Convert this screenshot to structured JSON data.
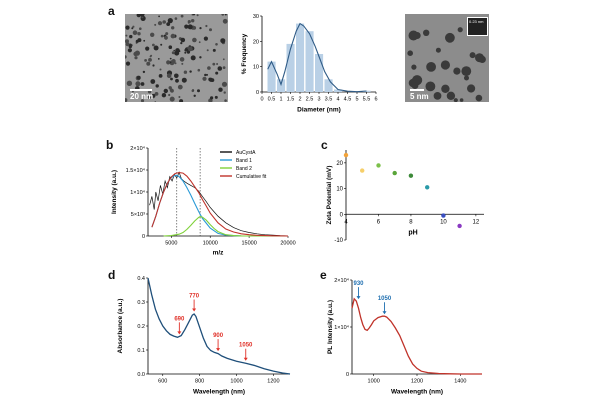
{
  "panels": {
    "a": "a",
    "b": "b",
    "c": "c",
    "d": "d",
    "e": "e"
  },
  "tem_left": {
    "scalebar_label": "20 nm"
  },
  "tem_right": {
    "scalebar_label": "5 nm",
    "inset_label": "0.23 nm"
  },
  "colors": {
    "hist_bar": "#b9d0e6",
    "hist_line": "#2f5b86",
    "aucysta": "#111111",
    "band1": "#2a9ad6",
    "band2": "#7fd13a",
    "cumulative": "#c0332a",
    "abs_line": "#1f4f7a",
    "abs_arrow": "#e0322a",
    "pl_line": "#c0332a",
    "pl_arrow": "#1f6fb0"
  },
  "chart_data": [
    {
      "id": "a-hist",
      "type": "bar",
      "xlabel": "Diameter (nm)",
      "ylabel": "% Frequency",
      "xlim": [
        0,
        6
      ],
      "ylim": [
        0,
        30
      ],
      "xticks": [
        "0",
        "0.5",
        "1",
        "1.5",
        "2",
        "2.5",
        "3",
        "3.5",
        "4",
        "4.5",
        "5",
        "5.5",
        "6"
      ],
      "yticks": [
        "0",
        "10",
        "20",
        "30"
      ],
      "x": [
        0.5,
        1.0,
        1.5,
        2.0,
        2.5,
        3.0,
        3.5,
        4.0,
        5.5
      ],
      "values": [
        12,
        5,
        19,
        27,
        24,
        15,
        5,
        1,
        0.5
      ],
      "fit_x": [
        0.3,
        0.5,
        0.8,
        1.0,
        1.2,
        1.5,
        1.8,
        2.0,
        2.2,
        2.5,
        2.8,
        3.0,
        3.3,
        3.6,
        4.0,
        4.5,
        5.0,
        5.5
      ],
      "fit_y": [
        9,
        12,
        7,
        3,
        8,
        17,
        24,
        27,
        26,
        23,
        18,
        14,
        8,
        4,
        1,
        0.3,
        0.1,
        0.4
      ]
    },
    {
      "id": "b-ms",
      "type": "line",
      "xlabel": "m/z",
      "ylabel": "Intensity (a.u.)",
      "xlim": [
        2000,
        20000
      ],
      "ylim": [
        0,
        20000
      ],
      "xticks": [
        "5000",
        "10000",
        "15000",
        "20000"
      ],
      "yticks": [
        "0",
        "5×10³",
        "1×10⁴",
        "1.5×10⁴",
        "2×10⁴"
      ],
      "vlines": [
        5700,
        8700
      ],
      "series": [
        {
          "name": "AuCystA",
          "x": [
            2200,
            2500,
            2800,
            3000,
            3300,
            3600,
            3900,
            4200,
            4500,
            4800,
            5100,
            5400,
            5700,
            6000,
            6300,
            6600,
            7000,
            7500,
            8000,
            8500,
            9000,
            9500,
            10000,
            11000,
            12000,
            13000,
            14000,
            15000,
            16000,
            17000,
            18000,
            19000,
            20000
          ],
          "values": [
            7000,
            9000,
            6000,
            10000,
            8000,
            11500,
            9500,
            12500,
            11000,
            13500,
            12500,
            14000,
            13200,
            14500,
            13000,
            12500,
            12000,
            11500,
            11000,
            10200,
            9000,
            7800,
            6500,
            4500,
            3000,
            1900,
            1200,
            800,
            500,
            300,
            200,
            100,
            50
          ]
        },
        {
          "name": "Band 1",
          "x": [
            2500,
            3000,
            3500,
            4000,
            4500,
            5000,
            5500,
            5700,
            6000,
            6500,
            7000,
            7500,
            8000,
            8500,
            9000,
            10000,
            11000,
            12000,
            13000,
            14000,
            16000,
            20000
          ],
          "values": [
            2000,
            4500,
            7500,
            10000,
            12000,
            13300,
            13800,
            13800,
            13500,
            12500,
            11000,
            9300,
            7400,
            5600,
            4000,
            1800,
            600,
            200,
            80,
            30,
            0,
            0
          ]
        },
        {
          "name": "Band 2",
          "x": [
            4000,
            5000,
            6000,
            6500,
            7000,
            7500,
            8000,
            8500,
            8700,
            9000,
            9500,
            10000,
            10500,
            11000,
            12000,
            13000,
            14000,
            16000,
            20000
          ],
          "values": [
            0,
            100,
            400,
            800,
            1500,
            2400,
            3400,
            4200,
            4400,
            4300,
            3600,
            2600,
            1700,
            1000,
            300,
            80,
            20,
            0,
            0
          ]
        },
        {
          "name": "Cumulative fit",
          "x": [
            2500,
            3000,
            3500,
            4000,
            4500,
            5000,
            5500,
            5700,
            6000,
            6500,
            7000,
            7500,
            8000,
            8500,
            9000,
            9500,
            10000,
            11000,
            12000,
            13000,
            14000,
            15000,
            16000,
            18000,
            20000
          ],
          "values": [
            2000,
            4500,
            7500,
            10000,
            12000,
            13400,
            14200,
            14300,
            14400,
            14300,
            13600,
            12500,
            11200,
            9900,
            8300,
            6800,
            5200,
            3000,
            1600,
            900,
            500,
            300,
            150,
            40,
            10
          ]
        }
      ]
    },
    {
      "id": "c-zeta",
      "type": "scatter",
      "xlabel": "pH",
      "ylabel": "Zeta Potential (mV)",
      "xlim": [
        4,
        12.5
      ],
      "ylim": [
        -10,
        25
      ],
      "xticks": [
        "4",
        "6",
        "8",
        "10",
        "12"
      ],
      "yticks": [
        "-10",
        "0",
        "10",
        "20"
      ],
      "x": [
        4.0,
        5.0,
        6.0,
        7.0,
        8.0,
        9.0,
        10.0,
        11.0
      ],
      "values": [
        23,
        17,
        19,
        16,
        15,
        10.5,
        -0.5,
        -4.5
      ],
      "point_colors": [
        "#f2a33a",
        "#f6cf6a",
        "#7cc04a",
        "#5aa53a",
        "#3d8a3a",
        "#2a9aa8",
        "#3a4fc2",
        "#8a3ac2"
      ]
    },
    {
      "id": "d-abs",
      "type": "line",
      "xlabel": "Wavelength (nm)",
      "ylabel": "Absorbance (a.u.)",
      "xlim": [
        520,
        1290
      ],
      "ylim": [
        0,
        0.4
      ],
      "xticks": [
        "600",
        "800",
        "1000",
        "1200"
      ],
      "yticks": [
        "0.0",
        "0.1",
        "0.2",
        "0.3",
        "0.4"
      ],
      "x": [
        520,
        540,
        560,
        580,
        600,
        620,
        640,
        660,
        680,
        700,
        720,
        740,
        760,
        770,
        780,
        800,
        820,
        840,
        860,
        880,
        900,
        920,
        950,
        1000,
        1050,
        1100,
        1150,
        1200,
        1250,
        1290
      ],
      "values": [
        0.4,
        0.33,
        0.27,
        0.23,
        0.2,
        0.18,
        0.165,
        0.158,
        0.153,
        0.16,
        0.185,
        0.215,
        0.245,
        0.25,
        0.24,
        0.195,
        0.15,
        0.115,
        0.098,
        0.09,
        0.085,
        0.075,
        0.065,
        0.053,
        0.045,
        0.035,
        0.022,
        0.012,
        0.004,
        0.0
      ],
      "annotations": [
        {
          "label": "690",
          "x": 690,
          "y": 0.157
        },
        {
          "label": "770",
          "x": 770,
          "y": 0.252
        },
        {
          "label": "900",
          "x": 900,
          "y": 0.087
        },
        {
          "label": "1050",
          "x": 1050,
          "y": 0.047
        }
      ]
    },
    {
      "id": "e-pl",
      "type": "line",
      "xlabel": "Wavelength (nm)",
      "ylabel": "PL Intensity (a.u.)",
      "xlim": [
        900,
        1500
      ],
      "ylim": [
        0,
        20000
      ],
      "xticks": [
        "1000",
        "1200",
        "1400"
      ],
      "yticks": [
        "0",
        "1×10⁴",
        "2×10⁴"
      ],
      "x": [
        900,
        910,
        920,
        930,
        940,
        950,
        960,
        970,
        980,
        990,
        1000,
        1020,
        1040,
        1050,
        1060,
        1080,
        1100,
        1120,
        1140,
        1160,
        1180,
        1200,
        1220,
        1250,
        1300,
        1350,
        1400,
        1450,
        1500
      ],
      "values": [
        14000,
        16000,
        15500,
        14000,
        12000,
        10500,
        9500,
        9300,
        9800,
        10500,
        11300,
        12000,
        12300,
        12300,
        12100,
        11200,
        9800,
        8200,
        6000,
        3800,
        2100,
        1200,
        600,
        300,
        100,
        50,
        0,
        0,
        0
      ],
      "annotations": [
        {
          "label": "930",
          "x": 930,
          "y": 15500
        },
        {
          "label": "1050",
          "x": 1050,
          "y": 12300
        }
      ]
    }
  ]
}
